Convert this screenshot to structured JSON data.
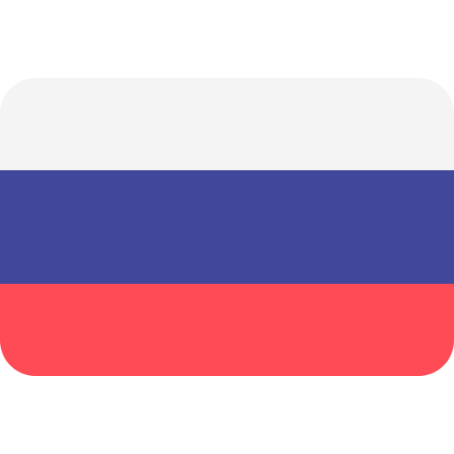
{
  "icon": {
    "name": "russia-flag-icon",
    "colors": {
      "top_stripe": "#F4F4F4",
      "middle_stripe": "#41479B",
      "bottom_stripe": "#FF4B55"
    }
  }
}
